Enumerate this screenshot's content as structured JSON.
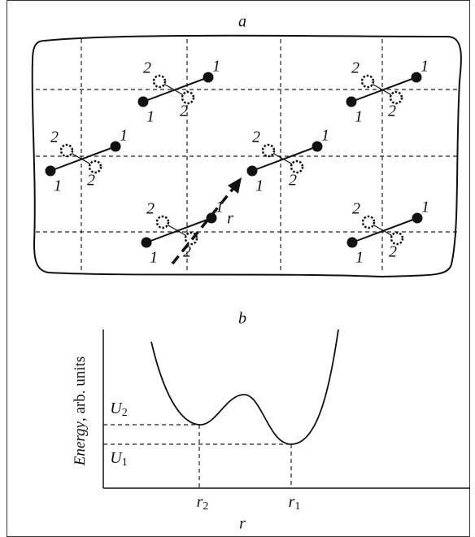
{
  "panel_a": {
    "label": "a",
    "molecules": [
      {
        "labels": [
          "1",
          "1",
          "2",
          "2"
        ]
      },
      {
        "labels": [
          "1",
          "1",
          "2",
          "2"
        ]
      },
      {
        "labels": [
          "1",
          "1",
          "2",
          "2"
        ]
      },
      {
        "labels": [
          "1",
          "1",
          "2",
          "2"
        ]
      },
      {
        "labels": [
          "1",
          "1",
          "2",
          "2"
        ]
      },
      {
        "labels": [
          "1",
          "1",
          "2",
          "2"
        ]
      }
    ],
    "arrow_label": "r"
  },
  "panel_b": {
    "label": "b",
    "y_axis": {
      "italic": "Energy",
      "rest": ", arb. units"
    },
    "levels": [
      {
        "base": "U",
        "sub": "2"
      },
      {
        "base": "U",
        "sub": "1"
      }
    ],
    "positions": [
      {
        "base": "r",
        "sub": "2"
      },
      {
        "base": "r",
        "sub": "1"
      }
    ],
    "x_axis": "r"
  }
}
